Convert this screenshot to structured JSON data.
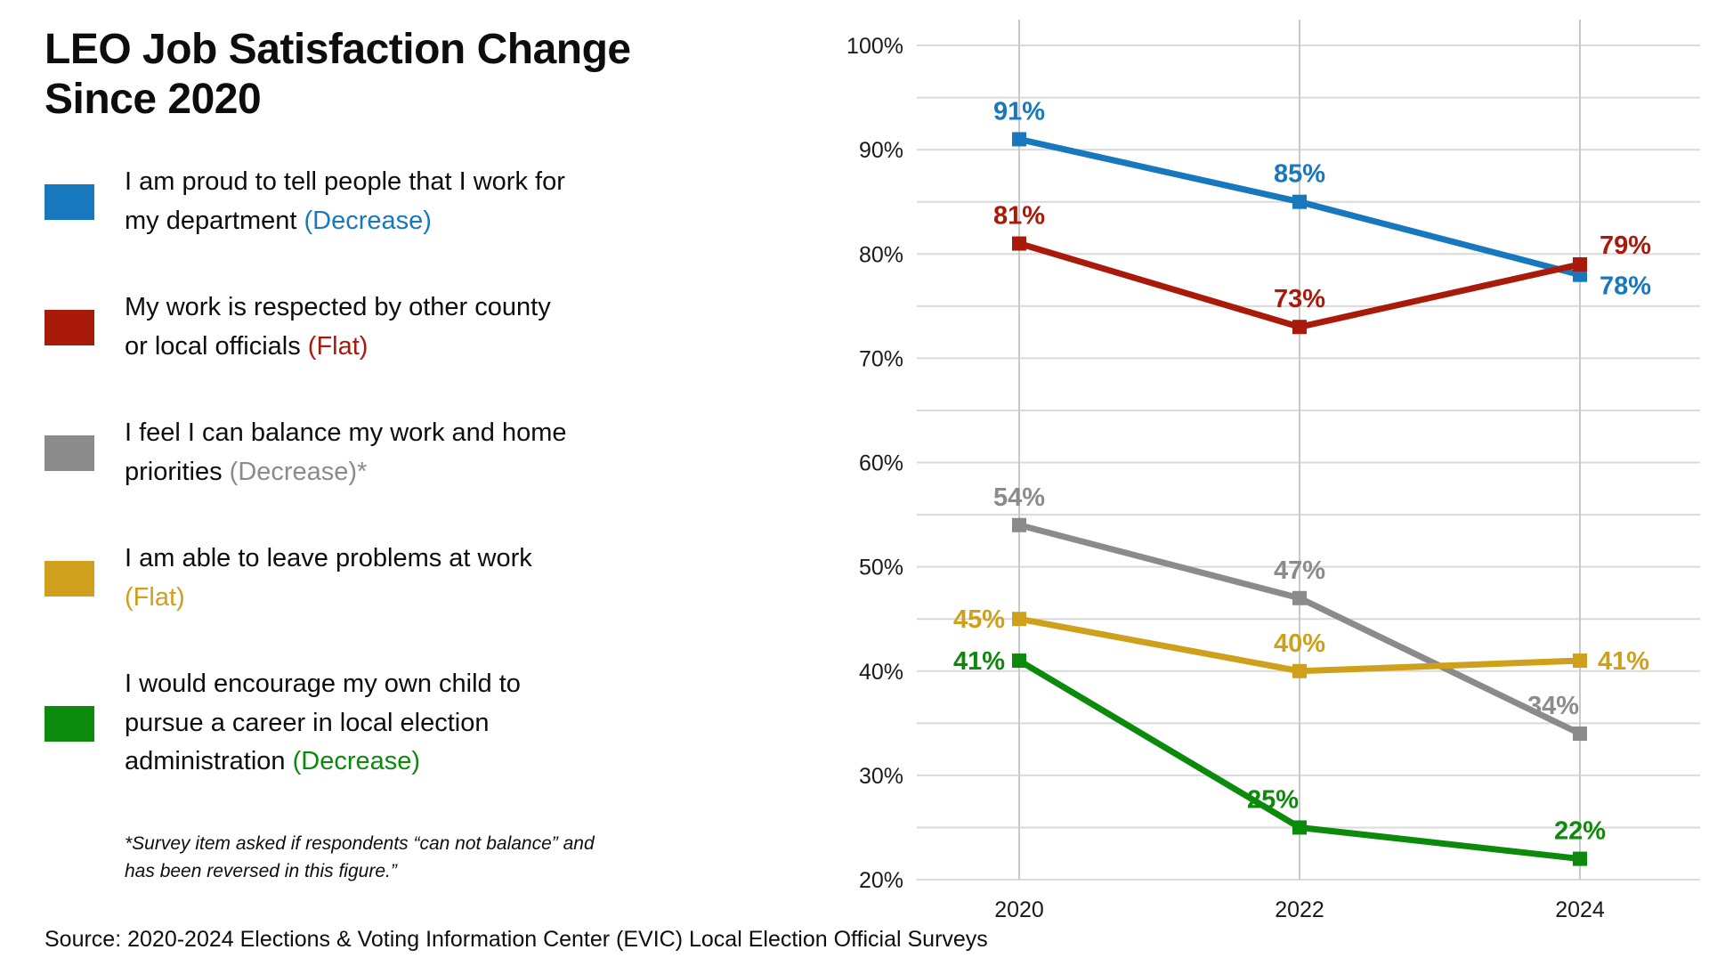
{
  "title": "LEO Job Satisfaction Change Since 2020",
  "legend": {
    "items": [
      {
        "label": "I am proud to tell people that I work for\nmy department ",
        "trend": "(Decrease)",
        "color": "#1878BE"
      },
      {
        "label": "My work is respected by other county\nor local officials ",
        "trend": "(Flat)",
        "color": "#AA1A0A"
      },
      {
        "label": "I feel I can balance my work and home\npriorities ",
        "trend": "(Decrease)*",
        "color": "#8B8B8B"
      },
      {
        "label": "I am able to leave problems at work\n",
        "trend": "(Flat)",
        "color": "#CFA01B"
      },
      {
        "label": "I would encourage my own child to\npursue a career in local election\nadministration ",
        "trend": "(Decrease)",
        "color": "#0B8A0B"
      }
    ]
  },
  "footnote": "*Survey item asked if respondents “can not balance” and\nhas been reversed in this figure.”",
  "source": "Source: 2020-2024 Elections & Voting Information Center (EVIC) Local Election Official Surveys",
  "chart_data": {
    "type": "line",
    "x": [
      "2020",
      "2022",
      "2024"
    ],
    "y_axis": {
      "min": 20,
      "max": 100,
      "gridline_step": 5,
      "label_step": 10,
      "format": "percent"
    },
    "grid": true,
    "marker": "square",
    "legend_position": "left",
    "series": [
      {
        "name": "I am proud to tell people that I work for my department",
        "trend": "Decrease",
        "color": "#1878BE",
        "values": [
          91,
          85,
          78
        ]
      },
      {
        "name": "My work is respected by other county or local officials",
        "trend": "Flat",
        "color": "#AA1A0A",
        "values": [
          81,
          73,
          79
        ]
      },
      {
        "name": "I feel I can balance my work and home priorities",
        "trend": "Decrease",
        "color": "#8B8B8B",
        "values": [
          54,
          47,
          34
        ]
      },
      {
        "name": "I am able to leave problems at work",
        "trend": "Flat",
        "color": "#CFA01B",
        "values": [
          45,
          40,
          41
        ]
      },
      {
        "name": "I would encourage my own child to pursue a career in local election administration",
        "trend": "Decrease",
        "color": "#0B8A0B",
        "values": [
          41,
          25,
          22
        ]
      }
    ],
    "point_labels": [
      [
        "91%",
        "85%",
        "78%"
      ],
      [
        "81%",
        "73%",
        "79%"
      ],
      [
        "54%",
        "47%",
        "34%"
      ],
      [
        "45%",
        "40%",
        "41%"
      ],
      [
        "41%",
        "25%",
        "22%"
      ]
    ],
    "label_positions": [
      [
        "above",
        "above",
        "right-below"
      ],
      [
        "above",
        "above",
        "right-above"
      ],
      [
        "above",
        "above",
        "above-left"
      ],
      [
        "left",
        "above",
        "right"
      ],
      [
        "left",
        "above-left",
        "above"
      ]
    ]
  }
}
